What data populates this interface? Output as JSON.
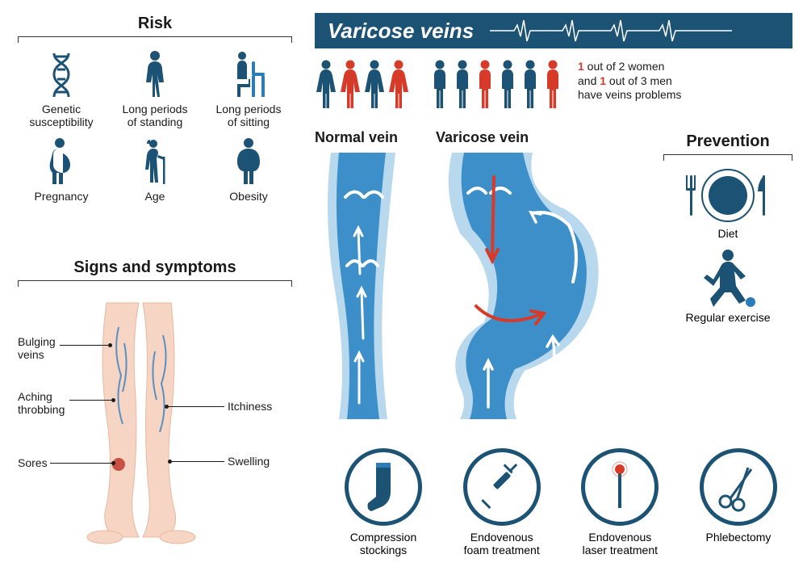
{
  "colors": {
    "primary": "#1c5374",
    "accent": "#d63b2a",
    "blue_medium": "#2c7cb8",
    "blue_light": "#5aa8d8",
    "blue_pale": "#b8d8ee",
    "skin": "#f6d5c4",
    "skin_dark": "#e8b8a0",
    "text": "#1a1a1a",
    "white": "#ffffff"
  },
  "title": "Varicose veins",
  "risk": {
    "title": "Risk",
    "items": [
      {
        "label": "Genetic\nsusceptibility",
        "icon": "dna"
      },
      {
        "label": "Long periods\nof standing",
        "icon": "standing"
      },
      {
        "label": "Long periods\nof sitting",
        "icon": "sitting"
      },
      {
        "label": "Pregnancy",
        "icon": "pregnant"
      },
      {
        "label": "Age",
        "icon": "elderly"
      },
      {
        "label": "Obesity",
        "icon": "obese"
      }
    ]
  },
  "stats": {
    "women": {
      "count": 4,
      "affected_indices": [
        1,
        3
      ],
      "color_normal": "#1c5374",
      "color_affected": "#d63b2a"
    },
    "men": {
      "count": 6,
      "affected_indices": [
        2,
        5
      ],
      "color_normal": "#1c5374",
      "color_affected": "#d63b2a"
    },
    "text_parts": [
      "1",
      " out of 2 women\nand ",
      "1",
      " out of 3 men\nhave veins problems"
    ]
  },
  "veins": {
    "normal_label": "Normal vein",
    "varicose_label": "Varicose vein"
  },
  "prevention": {
    "title": "Prevention",
    "items": [
      {
        "label": "Diet",
        "icon": "diet"
      },
      {
        "label": "Regular exercise",
        "icon": "exercise"
      }
    ]
  },
  "signs": {
    "title": "Signs and symptoms",
    "labels_left": [
      "Bulging\nveins",
      "Aching\nthrobbing",
      "Sores"
    ],
    "labels_right": [
      "Itchiness",
      "Swelling"
    ]
  },
  "treatments": [
    {
      "label": "Compression\nstockings",
      "icon": "stocking"
    },
    {
      "label": "Endovenous\nfoam treatment",
      "icon": "syringe"
    },
    {
      "label": "Endovenous\nlaser treatment",
      "icon": "laser"
    },
    {
      "label": "Phlebectomy",
      "icon": "scissors"
    }
  ]
}
